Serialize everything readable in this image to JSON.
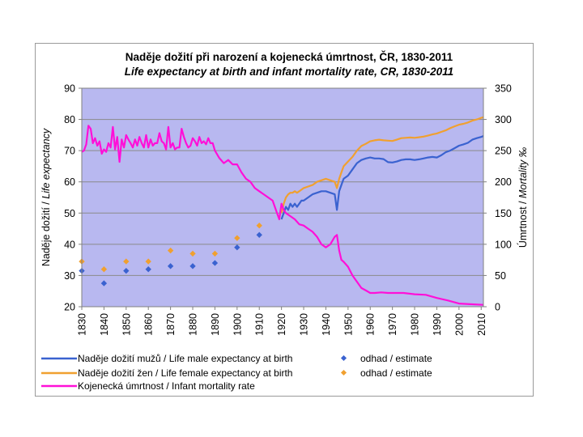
{
  "chart_data": {
    "type": "line",
    "title": "Naděje dožití při narození a kojenecká úmrtnost, ČR, 1830-2011",
    "subtitle": "Life expectancy at birth and infant mortality rate, CR, 1830-2011",
    "ylabel": {
      "normal": "Naděje dožití / ",
      "italic": "Life expectancy"
    },
    "y2label": {
      "normal": "Úmrtnost / ",
      "italic": "Mortality ‰"
    },
    "ylim": [
      20,
      90
    ],
    "y2lim": [
      0,
      350
    ],
    "xlim": [
      1830,
      2011
    ],
    "yticks": [
      "20",
      "30",
      "40",
      "50",
      "60",
      "70",
      "80",
      "90"
    ],
    "y2ticks": [
      "0",
      "50",
      "100",
      "150",
      "200",
      "250",
      "300",
      "350"
    ],
    "xticks": [
      "1830",
      "1840",
      "1850",
      "1860",
      "1870",
      "1880",
      "1890",
      "1900",
      "1910",
      "1920",
      "1930",
      "1940",
      "1950",
      "1960",
      "1970",
      "1980",
      "1990",
      "2000",
      "2010"
    ],
    "grid": true,
    "plot_background": "#b8b8f0",
    "series": [
      {
        "name": "Naděje dožití mužů / Life male expectancy at birth",
        "axis": "left",
        "color": "#3a62d0",
        "x": [
          1920,
          1921,
          1922,
          1923,
          1924,
          1925,
          1926,
          1927,
          1928,
          1929,
          1930,
          1932,
          1934,
          1936,
          1938,
          1940,
          1942,
          1944,
          1945,
          1946,
          1947,
          1948,
          1950,
          1952,
          1954,
          1956,
          1958,
          1960,
          1962,
          1964,
          1966,
          1968,
          1970,
          1972,
          1974,
          1976,
          1978,
          1980,
          1982,
          1984,
          1986,
          1988,
          1990,
          1992,
          1994,
          1996,
          1998,
          2000,
          2002,
          2004,
          2006,
          2008,
          2010,
          2011
        ],
        "values": [
          48,
          50,
          52,
          51,
          53,
          52,
          53,
          52,
          53,
          54,
          54,
          55,
          56,
          56.5,
          57,
          57,
          56.5,
          56,
          51,
          57,
          59,
          61,
          62,
          64,
          66,
          67,
          67.5,
          67.8,
          67.5,
          67.5,
          67.3,
          66.3,
          66.2,
          66.5,
          67,
          67.2,
          67.2,
          67,
          67.2,
          67.5,
          67.8,
          68,
          67.8,
          68.5,
          69.5,
          70,
          70.8,
          71.6,
          72,
          72.5,
          73.5,
          74,
          74.4,
          74.7
        ]
      },
      {
        "name": "Naděje dožití žen / Life female expectancy at birth",
        "axis": "left",
        "color": "#f0a030",
        "x": [
          1920,
          1921,
          1922,
          1923,
          1924,
          1925,
          1926,
          1927,
          1928,
          1929,
          1930,
          1932,
          1934,
          1936,
          1938,
          1940,
          1942,
          1944,
          1945,
          1946,
          1947,
          1948,
          1950,
          1952,
          1954,
          1956,
          1958,
          1960,
          1962,
          1964,
          1966,
          1968,
          1970,
          1972,
          1974,
          1976,
          1978,
          1980,
          1982,
          1984,
          1986,
          1988,
          1990,
          1992,
          1994,
          1996,
          1998,
          2000,
          2002,
          2004,
          2006,
          2008,
          2010,
          2011
        ],
        "values": [
          50,
          53,
          55,
          56,
          56.5,
          56.5,
          57,
          56.5,
          57,
          57.5,
          58,
          58.5,
          59,
          60,
          60.5,
          61,
          60.5,
          60,
          58,
          61,
          63,
          65,
          66.5,
          68,
          70,
          71.5,
          72.2,
          73,
          73.3,
          73.5,
          73.3,
          73.2,
          73.1,
          73.5,
          74,
          74.1,
          74.2,
          74.1,
          74.3,
          74.5,
          74.8,
          75.2,
          75.5,
          76,
          76.5,
          77.2,
          77.8,
          78.3,
          78.6,
          79,
          79.6,
          80,
          80.5,
          80.7
        ]
      },
      {
        "name": "Kojenecká úmrtnost / Infant mortality rate",
        "axis": "right",
        "color": "#ff10d8",
        "x": [
          1830,
          1831,
          1832,
          1833,
          1834,
          1835,
          1836,
          1837,
          1838,
          1839,
          1840,
          1841,
          1842,
          1843,
          1844,
          1845,
          1846,
          1847,
          1848,
          1849,
          1850,
          1851,
          1852,
          1853,
          1854,
          1855,
          1856,
          1857,
          1858,
          1859,
          1860,
          1861,
          1862,
          1863,
          1864,
          1865,
          1866,
          1867,
          1868,
          1869,
          1870,
          1871,
          1872,
          1873,
          1874,
          1875,
          1876,
          1877,
          1878,
          1879,
          1880,
          1881,
          1882,
          1883,
          1884,
          1885,
          1886,
          1887,
          1888,
          1889,
          1890,
          1892,
          1894,
          1896,
          1898,
          1900,
          1902,
          1904,
          1906,
          1908,
          1910,
          1912,
          1914,
          1916,
          1918,
          1919,
          1920,
          1921,
          1922,
          1924,
          1926,
          1928,
          1930,
          1932,
          1934,
          1936,
          1938,
          1940,
          1942,
          1944,
          1945,
          1946,
          1947,
          1948,
          1950,
          1952,
          1954,
          1956,
          1958,
          1960,
          1962,
          1965,
          1968,
          1970,
          1975,
          1980,
          1985,
          1990,
          1995,
          2000,
          2005,
          2011
        ],
        "values": [
          248,
          250,
          260,
          290,
          285,
          262,
          270,
          258,
          265,
          245,
          252,
          248,
          262,
          255,
          288,
          252,
          272,
          232,
          268,
          255,
          275,
          268,
          262,
          255,
          268,
          258,
          272,
          262,
          255,
          275,
          255,
          268,
          258,
          262,
          262,
          278,
          265,
          262,
          252,
          288,
          255,
          262,
          252,
          255,
          255,
          285,
          272,
          262,
          255,
          258,
          270,
          265,
          258,
          272,
          262,
          265,
          260,
          270,
          262,
          262,
          250,
          238,
          230,
          235,
          228,
          228,
          215,
          205,
          200,
          190,
          185,
          180,
          175,
          170,
          150,
          140,
          165,
          155,
          150,
          145,
          140,
          132,
          130,
          125,
          120,
          112,
          100,
          95,
          100,
          112,
          115,
          90,
          75,
          72,
          64,
          50,
          40,
          30,
          26,
          22,
          22,
          23,
          22,
          22,
          22,
          20,
          19,
          14,
          10,
          5,
          4,
          3
        ]
      },
      {
        "name": "odhad / estimate",
        "axis": "left",
        "color": "#3a62d0",
        "kind": "scatter",
        "x": [
          1830,
          1840,
          1850,
          1860,
          1870,
          1880,
          1890,
          1900,
          1910
        ],
        "values": [
          31.5,
          27.5,
          31.5,
          32,
          33,
          33,
          34,
          39,
          43
        ]
      },
      {
        "name": "odhad / estimate",
        "axis": "left",
        "color": "#f0a030",
        "kind": "scatter",
        "x": [
          1830,
          1840,
          1850,
          1860,
          1870,
          1880,
          1890,
          1900,
          1910
        ],
        "values": [
          34.5,
          32,
          34.5,
          34.5,
          38,
          37,
          37,
          42,
          46
        ]
      }
    ],
    "legend": {
      "position": "bottom",
      "male": "Naděje dožití mužů / Life male expectancy at birth",
      "female": "Naděje dožití žen / Life female expectancy at birth",
      "infant": "Kojenecká úmrtnost / Infant mortality rate",
      "est_male": "odhad / estimate",
      "est_female": "odhad / estimate"
    }
  }
}
